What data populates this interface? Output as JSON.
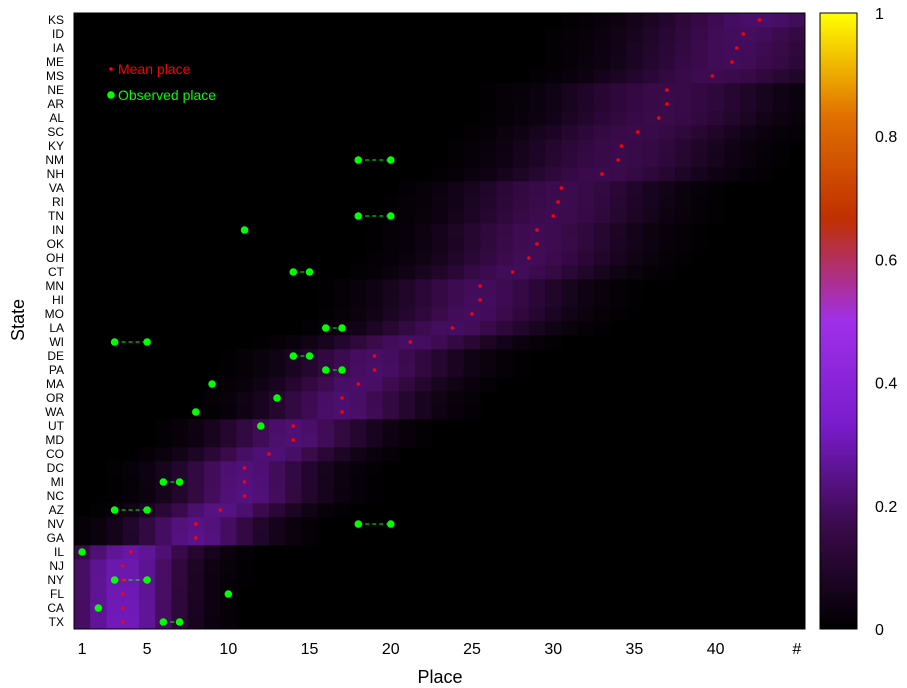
{
  "chart_data": {
    "type": "heatmap",
    "xlabel": "Place",
    "ylabel": "State",
    "x_range": [
      1,
      45
    ],
    "x_ticks": [
      {
        "value": 1,
        "label": "1"
      },
      {
        "value": 5,
        "label": "5"
      },
      {
        "value": 10,
        "label": "10"
      },
      {
        "value": 15,
        "label": "15"
      },
      {
        "value": 20,
        "label": "20"
      },
      {
        "value": 25,
        "label": "25"
      },
      {
        "value": 30,
        "label": "30"
      },
      {
        "value": 35,
        "label": "35"
      },
      {
        "value": 40,
        "label": "40"
      },
      {
        "value": 45,
        "label": "#"
      }
    ],
    "states_bottom_to_top": [
      "TX",
      "CA",
      "FL",
      "NY",
      "NJ",
      "IL",
      "GA",
      "NV",
      "AZ",
      "NC",
      "MI",
      "DC",
      "CO",
      "MD",
      "UT",
      "WA",
      "OR",
      "MA",
      "PA",
      "DE",
      "WI",
      "LA",
      "MO",
      "HI",
      "MN",
      "CT",
      "OH",
      "OK",
      "IN",
      "TN",
      "RI",
      "VA",
      "NH",
      "NM",
      "KY",
      "SC",
      "AL",
      "AR",
      "NE",
      "MS",
      "ME",
      "IA",
      "ID",
      "KS"
    ],
    "mean_place": [
      3.5,
      3.5,
      3.5,
      3.5,
      3.5,
      4.0,
      8.0,
      8.0,
      9.5,
      11.0,
      11.0,
      11.0,
      12.5,
      14.0,
      14.0,
      17.0,
      17.0,
      18.0,
      19.0,
      19.0,
      21.2,
      23.8,
      25.0,
      25.5,
      25.5,
      27.5,
      28.5,
      29.0,
      29.0,
      30.0,
      30.3,
      30.5,
      33.0,
      34.0,
      34.2,
      35.2,
      36.5,
      37.0,
      37.0,
      39.8,
      41.0,
      41.3,
      41.7,
      42.7
    ],
    "observed": [
      {
        "state": "TX",
        "places": [
          6,
          7
        ]
      },
      {
        "state": "CA",
        "places": [
          2
        ]
      },
      {
        "state": "FL",
        "places": [
          10
        ]
      },
      {
        "state": "NY",
        "places": [
          3,
          5
        ]
      },
      {
        "state": "IL",
        "places": [
          1
        ]
      },
      {
        "state": "NV",
        "places": [
          18,
          20
        ]
      },
      {
        "state": "AZ",
        "places": [
          3,
          5
        ]
      },
      {
        "state": "MI",
        "places": [
          6,
          7
        ]
      },
      {
        "state": "UT",
        "places": [
          12
        ]
      },
      {
        "state": "WA",
        "places": [
          8
        ]
      },
      {
        "state": "OR",
        "places": [
          13
        ]
      },
      {
        "state": "MA",
        "places": [
          9
        ]
      },
      {
        "state": "PA",
        "places": [
          16,
          17
        ]
      },
      {
        "state": "DE",
        "places": [
          14,
          15
        ]
      },
      {
        "state": "WI",
        "places": [
          3,
          5
        ]
      },
      {
        "state": "LA",
        "places": [
          16,
          17
        ]
      },
      {
        "state": "CT",
        "places": [
          14,
          15
        ]
      },
      {
        "state": "IN",
        "places": [
          11
        ]
      },
      {
        "state": "TN",
        "places": [
          18,
          20
        ]
      },
      {
        "state": "NM",
        "places": [
          18,
          20
        ]
      }
    ],
    "legend": [
      {
        "label": "Mean place",
        "color": "#ff0000"
      },
      {
        "label": "Observed place",
        "color": "#00ff00"
      }
    ],
    "legend_position": "top-left",
    "colorbar": {
      "min": 0,
      "max": 1,
      "ticks": [
        "0",
        "0.2",
        "0.4",
        "0.6",
        "0.8",
        "1"
      ]
    },
    "colormap": [
      "#000000",
      "#3a0a4a",
      "#7a1ccc",
      "#a030e8",
      "#c03000",
      "#e07000",
      "#ffff00"
    ]
  }
}
